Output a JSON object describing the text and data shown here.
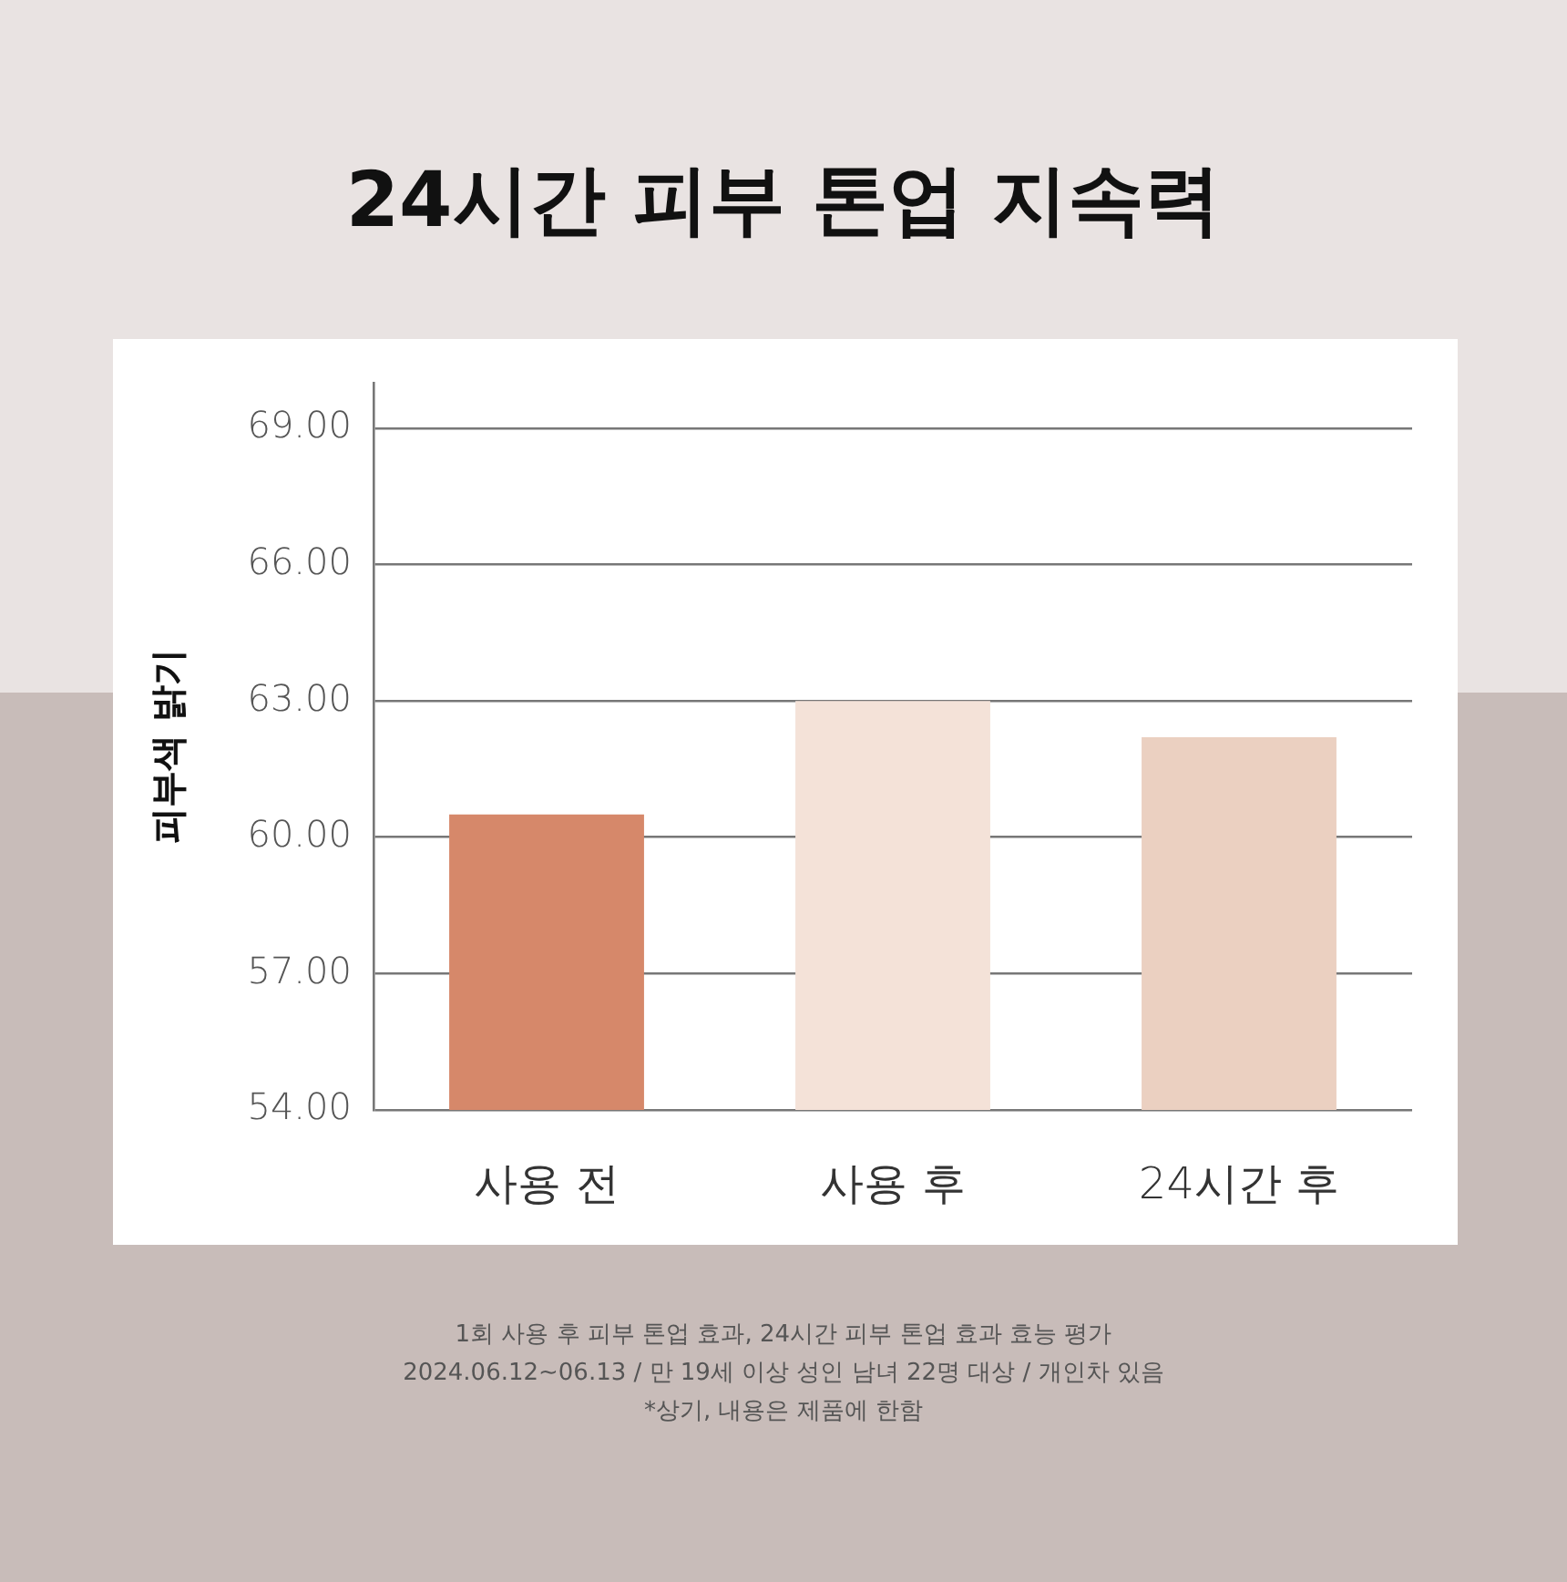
{
  "chart_data": {
    "type": "bar",
    "title": "24시간 피부 톤업 지속력",
    "ylabel": "피부색 밝기",
    "categories": [
      "사용 전",
      "사용 후",
      "24시간 후"
    ],
    "values": [
      60.5,
      63.0,
      62.2
    ],
    "colors": [
      "#d6886a",
      "#f4e2d8",
      "#ebd0c1"
    ],
    "ylim": [
      54,
      70
    ],
    "yticks": [
      {
        "value": 54,
        "label": "54.00"
      },
      {
        "value": 57,
        "label": "57.00"
      },
      {
        "value": 60,
        "label": "60.00"
      },
      {
        "value": 63,
        "label": "63.00"
      },
      {
        "value": 66,
        "label": "66.00"
      },
      {
        "value": 69,
        "label": "69.00"
      }
    ],
    "grid": "y",
    "legend": false,
    "annotations": [
      "1회 사용 후 피부 톤업 효과, 24시간 피부 톤업 효과 효능 평가",
      "2024.06.12~06.13 / 만 19세 이상 성인 남녀 22명 대상 / 개인차 있음",
      "*상기, 내용은 제품에 한함"
    ]
  }
}
